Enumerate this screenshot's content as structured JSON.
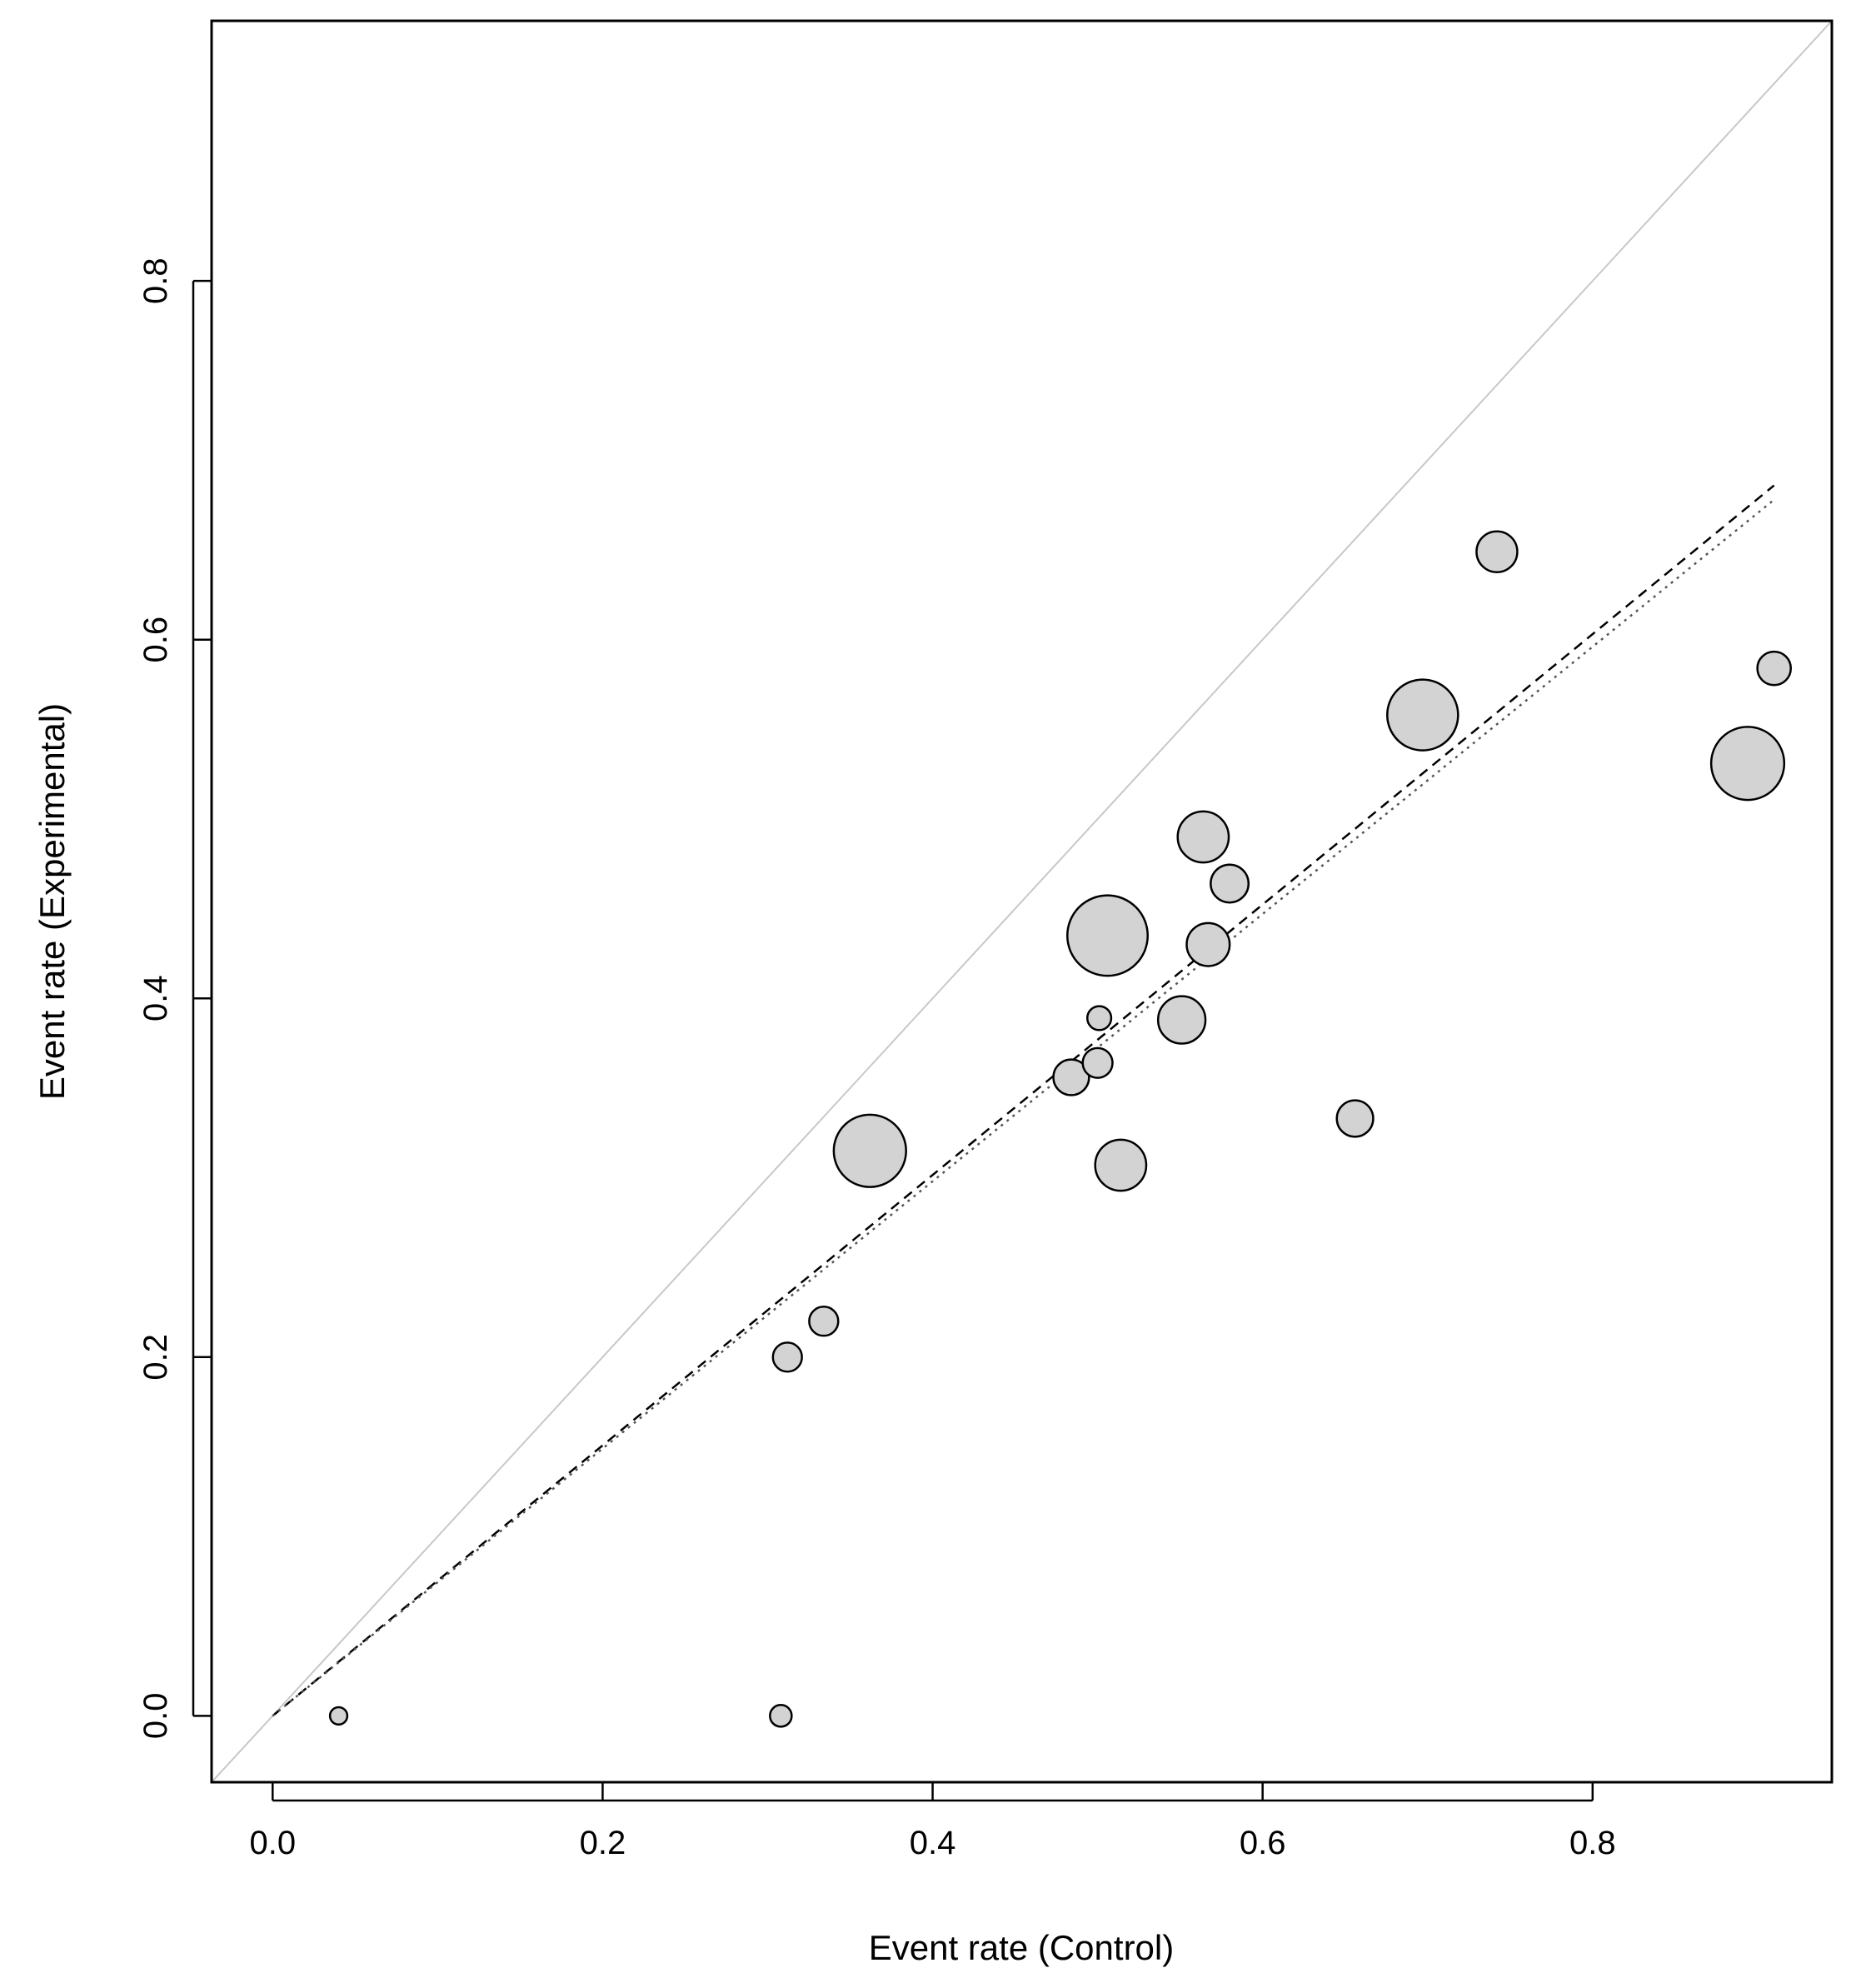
{
  "chart_data": {
    "type": "scatter",
    "xlabel": "Event rate (Control)",
    "ylabel": "Event rate (Experimental)",
    "xlim": [
      -0.037,
      0.945
    ],
    "ylim": [
      -0.037,
      0.945
    ],
    "xticks": [
      0.0,
      0.2,
      0.4,
      0.6,
      0.8
    ],
    "yticks": [
      0.0,
      0.2,
      0.4,
      0.6,
      0.8
    ],
    "xtick_labels": [
      "0.0",
      "0.2",
      "0.4",
      "0.6",
      "0.8"
    ],
    "ytick_labels": [
      "0.0",
      "0.2",
      "0.4",
      "0.6",
      "0.8"
    ],
    "grid": false,
    "bubble_fill": "#d3d3d3",
    "bubble_stroke": "#000000",
    "points": [
      {
        "x": 0.04,
        "y": 0.0,
        "size": 0.1
      },
      {
        "x": 0.308,
        "y": 0.0,
        "size": 0.16
      },
      {
        "x": 0.312,
        "y": 0.2,
        "size": 0.26
      },
      {
        "x": 0.334,
        "y": 0.22,
        "size": 0.26
      },
      {
        "x": 0.362,
        "y": 0.315,
        "size": 0.85
      },
      {
        "x": 0.484,
        "y": 0.356,
        "size": 0.35
      },
      {
        "x": 0.5,
        "y": 0.364,
        "size": 0.27
      },
      {
        "x": 0.501,
        "y": 0.389,
        "size": 0.19
      },
      {
        "x": 0.506,
        "y": 0.435,
        "size": 0.96
      },
      {
        "x": 0.514,
        "y": 0.307,
        "size": 0.56
      },
      {
        "x": 0.551,
        "y": 0.388,
        "size": 0.51
      },
      {
        "x": 0.564,
        "y": 0.49,
        "size": 0.56
      },
      {
        "x": 0.567,
        "y": 0.43,
        "size": 0.45
      },
      {
        "x": 0.58,
        "y": 0.464,
        "size": 0.38
      },
      {
        "x": 0.656,
        "y": 0.333,
        "size": 0.36
      },
      {
        "x": 0.697,
        "y": 0.558,
        "size": 0.83
      },
      {
        "x": 0.742,
        "y": 0.649,
        "size": 0.42
      },
      {
        "x": 0.894,
        "y": 0.531,
        "size": 0.86
      },
      {
        "x": 0.91,
        "y": 0.584,
        "size": 0.32
      }
    ],
    "lines": [
      {
        "style": "solid",
        "color": "#c8c8c8",
        "x": [
          -0.037,
          0.945
        ],
        "y": [
          -0.037,
          0.945
        ]
      },
      {
        "style": "dashed",
        "color": "#000000",
        "x": [
          0.0,
          0.91
        ],
        "y": [
          0.0,
          0.686
        ]
      },
      {
        "style": "dotted",
        "color": "#555555",
        "x": [
          0.0,
          0.91
        ],
        "y": [
          0.0,
          0.678
        ]
      }
    ]
  }
}
